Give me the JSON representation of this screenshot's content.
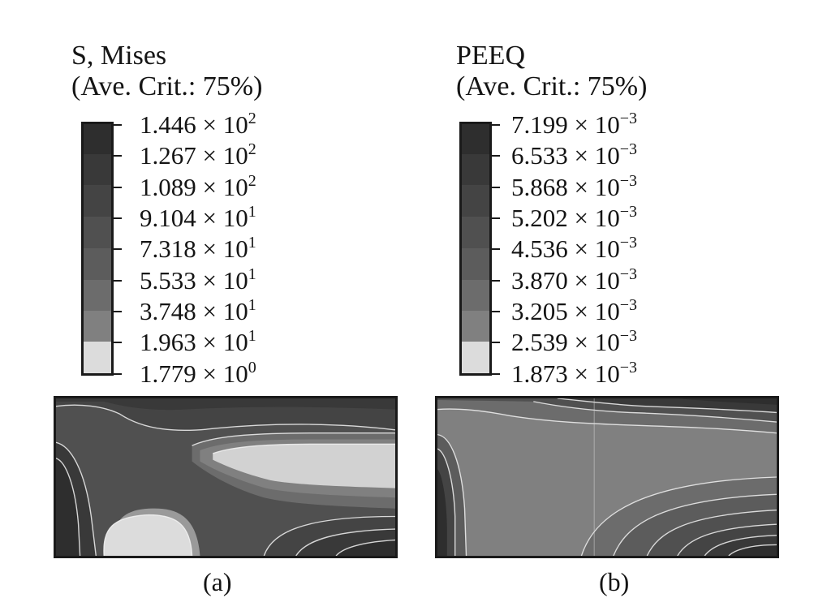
{
  "panels": [
    {
      "title": "S, Mises",
      "subtitle": "(Ave. Crit.: 75%)",
      "legend": [
        {
          "mantissa": "1.446",
          "exp": "2"
        },
        {
          "mantissa": "1.267",
          "exp": "2"
        },
        {
          "mantissa": "1.089",
          "exp": "2"
        },
        {
          "mantissa": "9.104",
          "exp": "1"
        },
        {
          "mantissa": "7.318",
          "exp": "1"
        },
        {
          "mantissa": "5.533",
          "exp": "1"
        },
        {
          "mantissa": "3.748",
          "exp": "1"
        },
        {
          "mantissa": "1.963",
          "exp": "1"
        },
        {
          "mantissa": "1.779",
          "exp": "0"
        }
      ],
      "caption": "(a)"
    },
    {
      "title": "PEEQ",
      "subtitle": "(Ave. Crit.: 75%)",
      "legend": [
        {
          "mantissa": "7.199",
          "exp": "−3"
        },
        {
          "mantissa": "6.533",
          "exp": "−3"
        },
        {
          "mantissa": "5.868",
          "exp": "−3"
        },
        {
          "mantissa": "5.202",
          "exp": "−3"
        },
        {
          "mantissa": "4.536",
          "exp": "−3"
        },
        {
          "mantissa": "3.870",
          "exp": "−3"
        },
        {
          "mantissa": "3.205",
          "exp": "−3"
        },
        {
          "mantissa": "2.539",
          "exp": "−3"
        },
        {
          "mantissa": "1.873",
          "exp": "−3"
        }
      ],
      "caption": "(b)"
    }
  ],
  "colors": {
    "band_shades": [
      "#2e2e2e",
      "#393939",
      "#444444",
      "#505050",
      "#5c5c5c",
      "#6c6c6c",
      "#808080",
      "#9a9a9a",
      "#dcdcdc"
    ],
    "ink": "#141414",
    "contour_line": "#f2f2f2"
  }
}
